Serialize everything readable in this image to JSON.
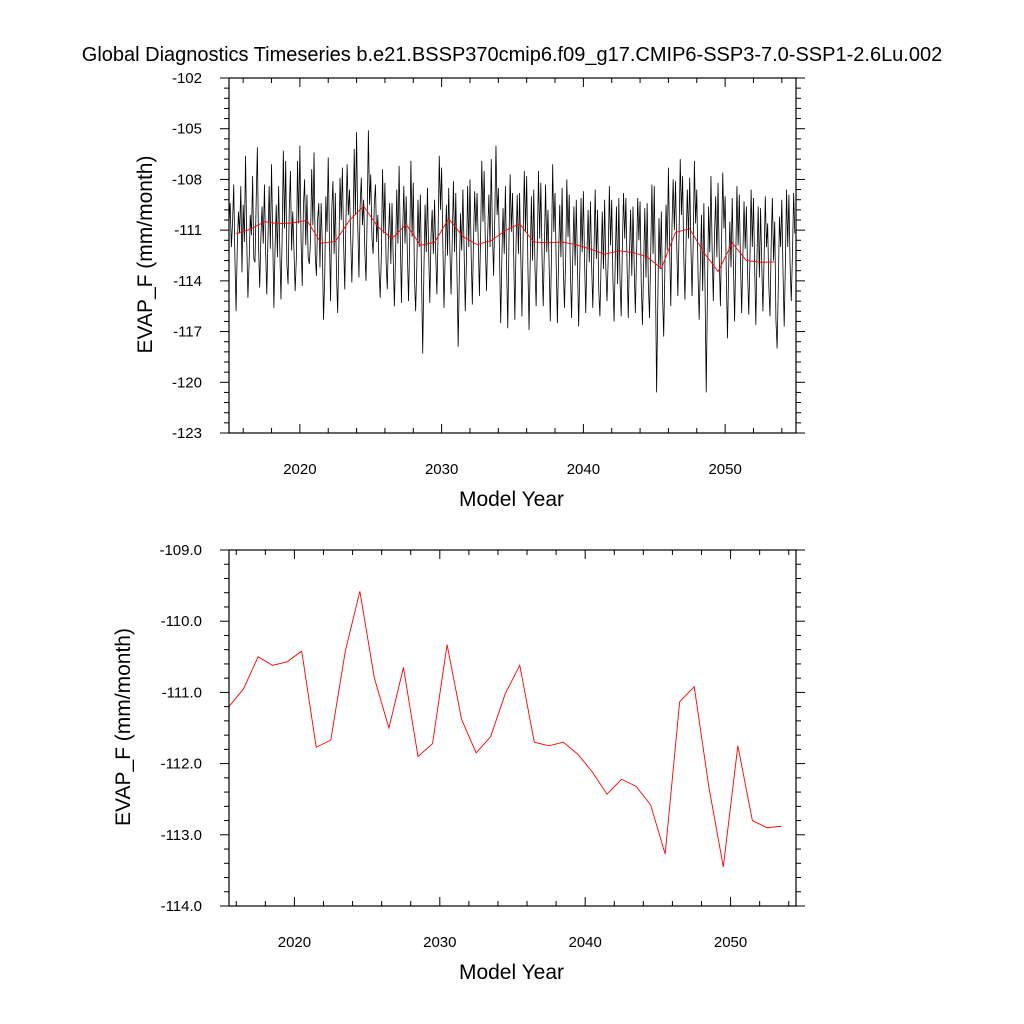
{
  "figure": {
    "title": "Global Diagnostics Timeseries b.e21.BSSP370cmip6.f09_g17.CMIP6-SSP3-7.0-SSP1-2.6Lu.002"
  },
  "colors": {
    "monthly": "#000000",
    "annual": "#ff0000",
    "frame": "#000000"
  },
  "chart_data": [
    {
      "type": "line",
      "panel": "top",
      "xlabel": "Model Year",
      "ylabel": "EVAP_F (mm/month)",
      "xlim": [
        2015,
        2055
      ],
      "ylim": [
        -123,
        -102
      ],
      "xticks": [
        2020,
        2030,
        2040,
        2050
      ],
      "xtick_labels": [
        "2020",
        "2030",
        "2040",
        "2050"
      ],
      "yticks": [
        -123,
        -120,
        -117,
        -114,
        -111,
        -108,
        -105,
        -102
      ],
      "ytick_labels": [
        "-123",
        "-120",
        "-117",
        "-114",
        "-111",
        "-108",
        "-105",
        "-102"
      ],
      "series": [
        {
          "role": "monthly",
          "x_start": 2015.0,
          "x_step": 0.0833333,
          "y": [
            -110.5,
            -109.4,
            -112.0,
            -110.6,
            -108.3,
            -112.7,
            -115.8,
            -112.0,
            -109.9,
            -111.2,
            -108.4,
            -113.5,
            -109.5,
            -111.7,
            -106.6,
            -111.6,
            -115.0,
            -113.0,
            -110.1,
            -111.3,
            -107.8,
            -112.7,
            -112.9,
            -109.3,
            -106.1,
            -111.9,
            -114.4,
            -111.4,
            -109.6,
            -111.8,
            -108.3,
            -112.2,
            -114.8,
            -111.4,
            -108.4,
            -112.1,
            -107.1,
            -111.4,
            -115.6,
            -112.0,
            -109.5,
            -112.6,
            -108.4,
            -112.1,
            -115.1,
            -111.4,
            -106.3,
            -110.9,
            -106.9,
            -113.0,
            -114.2,
            -109.8,
            -107.5,
            -112.2,
            -109.9,
            -112.2,
            -114.6,
            -112.7,
            -106.9,
            -110.6,
            -106.0,
            -111.6,
            -114.3,
            -109.6,
            -108.0,
            -111.9,
            -108.9,
            -112.6,
            -113.0,
            -111.6,
            -107.4,
            -110.7,
            -106.4,
            -112.5,
            -113.7,
            -110.4,
            -109.4,
            -113.2,
            -109.4,
            -111.9,
            -116.3,
            -113.9,
            -109.0,
            -111.1,
            -106.7,
            -111.4,
            -115.2,
            -109.8,
            -108.1,
            -112.4,
            -108.8,
            -113.6,
            -115.9,
            -112.0,
            -107.9,
            -110.4,
            -107.3,
            -111.7,
            -114.5,
            -110.4,
            -107.1,
            -110.1,
            -108.6,
            -111.4,
            -114.1,
            -111.2,
            -106.2,
            -110.1,
            -105.2,
            -110.7,
            -113.8,
            -109.6,
            -107.9,
            -110.7,
            -109.2,
            -112.2,
            -114.0,
            -110.1,
            -105.1,
            -109.5,
            -107.7,
            -111.4,
            -112.4,
            -109.5,
            -108.3,
            -111.7,
            -110.1,
            -113.3,
            -115.0,
            -112.4,
            -107.4,
            -111.2,
            -108.2,
            -112.9,
            -114.5,
            -111.4,
            -109.4,
            -113.0,
            -109.4,
            -112.6,
            -115.5,
            -112.4,
            -108.6,
            -111.8,
            -107.2,
            -111.4,
            -115.3,
            -111.1,
            -108.4,
            -111.8,
            -109.0,
            -112.4,
            -115.2,
            -111.6,
            -106.9,
            -111.4,
            -108.2,
            -113.8,
            -115.8,
            -113.1,
            -109.2,
            -112.0,
            -108.9,
            -113.7,
            -118.3,
            -113.4,
            -109.5,
            -112.3,
            -108.5,
            -112.2,
            -115.3,
            -111.4,
            -109.8,
            -112.4,
            -109.2,
            -112.4,
            -114.8,
            -111.2,
            -106.6,
            -109.8,
            -107.3,
            -111.7,
            -115.6,
            -112.5,
            -109.5,
            -112.5,
            -108.5,
            -112.2,
            -114.8,
            -111.6,
            -108.1,
            -112.3,
            -108.8,
            -113.5,
            -117.9,
            -113.6,
            -110.0,
            -112.2,
            -108.6,
            -112.1,
            -115.8,
            -112.8,
            -108.4,
            -112.0,
            -108.0,
            -112.4,
            -115.4,
            -111.5,
            -108.7,
            -111.1,
            -108.8,
            -111.6,
            -114.9,
            -111.3,
            -106.9,
            -110.5,
            -107.5,
            -111.8,
            -114.6,
            -111.3,
            -108.9,
            -112.0,
            -106.8,
            -111.2,
            -113.7,
            -110.2,
            -106.0,
            -110.1,
            -108.5,
            -112.4,
            -116.5,
            -112.6,
            -109.7,
            -112.4,
            -108.4,
            -113.1,
            -116.8,
            -111.7,
            -107.7,
            -111.1,
            -108.8,
            -112.5,
            -116.3,
            -111.8,
            -108.9,
            -112.4,
            -108.8,
            -112.5,
            -116.1,
            -111.4,
            -107.5,
            -111.1,
            -107.8,
            -113.0,
            -116.9,
            -112.9,
            -109.0,
            -112.8,
            -108.6,
            -113.1,
            -115.5,
            -111.9,
            -107.5,
            -111.5,
            -108.2,
            -112.6,
            -115.5,
            -112.0,
            -108.3,
            -112.3,
            -109.8,
            -113.1,
            -116.4,
            -112.4,
            -107.1,
            -111.1,
            -108.8,
            -113.1,
            -116.5,
            -112.7,
            -109.5,
            -112.6,
            -108.5,
            -113.2,
            -115.6,
            -112.7,
            -108.0,
            -111.4,
            -108.9,
            -113.4,
            -116.2,
            -112.6,
            -109.6,
            -113.1,
            -109.2,
            -113.1,
            -116.7,
            -113.3,
            -109.1,
            -112.3,
            -108.7,
            -112.8,
            -115.9,
            -112.5,
            -109.8,
            -112.9,
            -109.3,
            -113.1,
            -115.6,
            -112.1,
            -108.6,
            -112.7,
            -109.8,
            -114.5,
            -116.1,
            -113.0,
            -109.9,
            -113.3,
            -109.2,
            -113.3,
            -115.2,
            -112.7,
            -108.4,
            -111.9,
            -109.2,
            -113.9,
            -116.4,
            -112.7,
            -109.6,
            -114.2,
            -109.1,
            -113.9,
            -116.1,
            -112.0,
            -108.8,
            -111.5,
            -109.1,
            -113.2,
            -116.2,
            -112.4,
            -109.8,
            -113.7,
            -109.6,
            -113.1,
            -115.9,
            -112.5,
            -109.1,
            -111.6,
            -109.3,
            -114.2,
            -116.6,
            -113.1,
            -109.7,
            -113.8,
            -109.4,
            -114.2,
            -116.2,
            -112.4,
            -108.3,
            -112.4,
            -108.4,
            -113.6,
            -120.6,
            -115.3,
            -110.3,
            -113.3,
            -109.9,
            -114.8,
            -117.3,
            -113.2,
            -109.5,
            -112.2,
            -107.3,
            -111.9,
            -115.5,
            -110.8,
            -108.0,
            -111.0,
            -108.1,
            -111.8,
            -114.9,
            -111.2,
            -106.8,
            -110.1,
            -107.8,
            -112.6,
            -115.1,
            -111.5,
            -108.6,
            -111.5,
            -107.9,
            -111.8,
            -114.9,
            -111.7,
            -106.9,
            -110.6,
            -108.6,
            -113.4,
            -116.3,
            -113.1,
            -110.1,
            -114.6,
            -109.4,
            -114.5,
            -120.6,
            -114.8,
            -109.6,
            -112.3,
            -107.8,
            -112.1,
            -115.2,
            -111.4,
            -109.0,
            -112.6,
            -108.2,
            -112.6,
            -115.5,
            -111.5,
            -107.6,
            -110.9,
            -109.0,
            -113.6,
            -117.4,
            -113.2,
            -110.5,
            -113.2,
            -109.1,
            -112.9,
            -116.4,
            -112.6,
            -108.4,
            -111.9,
            -108.9,
            -112.9,
            -115.9,
            -112.6,
            -109.3,
            -112.1,
            -109.6,
            -113.5,
            -116.0,
            -112.8,
            -108.6,
            -112.0,
            -109.1,
            -113.2,
            -116.6,
            -112.4,
            -109.6,
            -113.8,
            -109.7,
            -113.0,
            -115.8,
            -112.7,
            -109.0,
            -112.0,
            -110.6,
            -114.3,
            -116.1,
            -111.8,
            -109.1,
            -112.8,
            -110.5,
            -116.3,
            -118.0,
            -114.4,
            -110.2,
            -112.0,
            -109.2,
            -113.5,
            -116.7,
            -113.0,
            -108.6,
            -112.0,
            -108.9,
            -113.1,
            -115.2,
            -112.4,
            -108.8,
            -111.2
          ]
        },
        {
          "role": "annual",
          "x": [
            2015.5,
            2016.5,
            2017.5,
            2018.5,
            2019.5,
            2020.5,
            2021.5,
            2022.5,
            2023.5,
            2024.5,
            2025.5,
            2026.5,
            2027.5,
            2028.5,
            2029.5,
            2030.5,
            2031.5,
            2032.5,
            2033.5,
            2034.5,
            2035.5,
            2036.5,
            2037.5,
            2038.5,
            2039.5,
            2040.5,
            2041.5,
            2042.5,
            2043.5,
            2044.5,
            2045.5,
            2046.5,
            2047.5,
            2048.5,
            2049.5,
            2050.5,
            2051.5,
            2052.5,
            2053.5
          ],
          "y": [
            -111.2,
            -110.95,
            -110.5,
            -110.62,
            -110.57,
            -110.42,
            -111.77,
            -111.67,
            -110.42,
            -109.58,
            -110.8,
            -111.5,
            -110.65,
            -111.9,
            -111.72,
            -110.33,
            -111.38,
            -111.85,
            -111.62,
            -111.02,
            -110.62,
            -111.7,
            -111.75,
            -111.7,
            -111.87,
            -112.12,
            -112.43,
            -112.22,
            -112.32,
            -112.58,
            -113.27,
            -111.13,
            -110.92,
            -112.32,
            -113.45,
            -111.75,
            -112.8,
            -112.9,
            -112.88
          ]
        }
      ]
    },
    {
      "type": "line",
      "panel": "bottom",
      "xlabel": "Model Year",
      "ylabel": "EVAP_F (mm/month)",
      "xlim": [
        2015.5,
        2054.5
      ],
      "ylim": [
        -114,
        -109
      ],
      "xticks": [
        2020,
        2030,
        2040,
        2050
      ],
      "xtick_labels": [
        "2020",
        "2030",
        "2040",
        "2050"
      ],
      "yticks": [
        -114,
        -113,
        -112,
        -111,
        -110,
        -109
      ],
      "ytick_labels": [
        "-114.0",
        "-113.0",
        "-112.0",
        "-111.0",
        "-110.0",
        "-109.0"
      ],
      "series": [
        {
          "role": "annual",
          "x": [
            2015.5,
            2016.5,
            2017.5,
            2018.5,
            2019.5,
            2020.5,
            2021.5,
            2022.5,
            2023.5,
            2024.5,
            2025.5,
            2026.5,
            2027.5,
            2028.5,
            2029.5,
            2030.5,
            2031.5,
            2032.5,
            2033.5,
            2034.5,
            2035.5,
            2036.5,
            2037.5,
            2038.5,
            2039.5,
            2040.5,
            2041.5,
            2042.5,
            2043.5,
            2044.5,
            2045.5,
            2046.5,
            2047.5,
            2048.5,
            2049.5,
            2050.5,
            2051.5,
            2052.5,
            2053.5
          ],
          "y": [
            -111.2,
            -110.95,
            -110.5,
            -110.62,
            -110.57,
            -110.42,
            -111.77,
            -111.67,
            -110.42,
            -109.58,
            -110.8,
            -111.5,
            -110.65,
            -111.9,
            -111.72,
            -110.33,
            -111.38,
            -111.85,
            -111.62,
            -111.02,
            -110.62,
            -111.7,
            -111.75,
            -111.7,
            -111.87,
            -112.12,
            -112.43,
            -112.22,
            -112.32,
            -112.58,
            -113.27,
            -111.13,
            -110.92,
            -112.32,
            -113.45,
            -111.75,
            -112.8,
            -112.9,
            -112.88
          ]
        }
      ]
    }
  ]
}
